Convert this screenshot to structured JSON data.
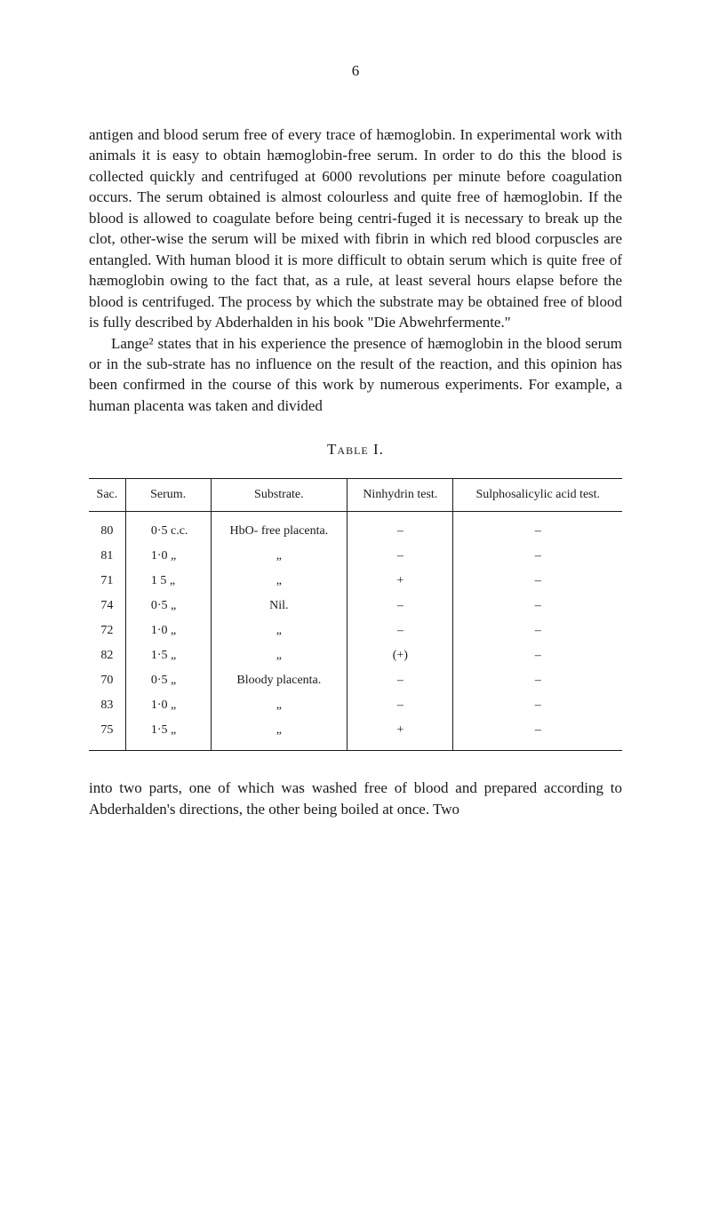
{
  "page_number": "6",
  "paragraphs": {
    "p1": "antigen and blood serum free of every trace of hæmoglobin. In experimental work with animals it is easy to obtain hæmoglobin-free serum. In order to do this the blood is collected quickly and centrifuged at 6000 revolutions per minute before coagulation occurs. The serum obtained is almost colourless and quite free of hæmoglobin. If the blood is allowed to coagulate before being centri-fuged it is necessary to break up the clot, other-wise the serum will be mixed with fibrin in which red blood corpuscles are entangled. With human blood it is more difficult to obtain serum which is quite free of hæmoglobin owing to the fact that, as a rule, at least several hours elapse before the blood is centrifuged. The process by which the substrate may be obtained free of blood is fully described by Abderhalden in his book \"Die Abwehrfermente.\"",
    "p2": "Lange² states that in his experience the presence of hæmoglobin in the blood serum or in the sub-strate has no influence on the result of the reaction, and this opinion has been confirmed in the course of this work by numerous experiments. For example, a human placenta was taken and divided"
  },
  "table": {
    "caption": "Table I.",
    "headers": {
      "sac": "Sac.",
      "serum": "Serum.",
      "substrate": "Substrate.",
      "ninhydrin": "Ninhydrin test.",
      "sulpho": "Sulphosalicylic acid test."
    },
    "rows": [
      {
        "sac": "80",
        "serum": "0·5 c.c.",
        "substrate": "HbO- free placenta.",
        "ninhydrin": "–",
        "sulpho": "–"
      },
      {
        "sac": "81",
        "serum": "1·0  „",
        "substrate": "„",
        "ninhydrin": "–",
        "sulpho": "–"
      },
      {
        "sac": "71",
        "serum": "1 5  „",
        "substrate": "„",
        "ninhydrin": "+",
        "sulpho": "–"
      },
      {
        "sac": "74",
        "serum": "0·5  „",
        "substrate": "Nil.",
        "ninhydrin": "–",
        "sulpho": "–"
      },
      {
        "sac": "72",
        "serum": "1·0  „",
        "substrate": "„",
        "ninhydrin": "–",
        "sulpho": "–"
      },
      {
        "sac": "82",
        "serum": "1·5  „",
        "substrate": "„",
        "ninhydrin": "(+)",
        "sulpho": "–"
      },
      {
        "sac": "70",
        "serum": "0·5  „",
        "substrate": "Bloody placenta.",
        "ninhydrin": "–",
        "sulpho": "–"
      },
      {
        "sac": "83",
        "serum": "1·0  „",
        "substrate": "„",
        "ninhydrin": "–",
        "sulpho": "–"
      },
      {
        "sac": "75",
        "serum": "1·5  „",
        "substrate": "„",
        "ninhydrin": "+",
        "sulpho": "–"
      }
    ]
  },
  "footer_paragraph": "into two parts, one of which was washed free of blood and prepared according to Abderhalden's directions, the other being boiled at once. Two"
}
